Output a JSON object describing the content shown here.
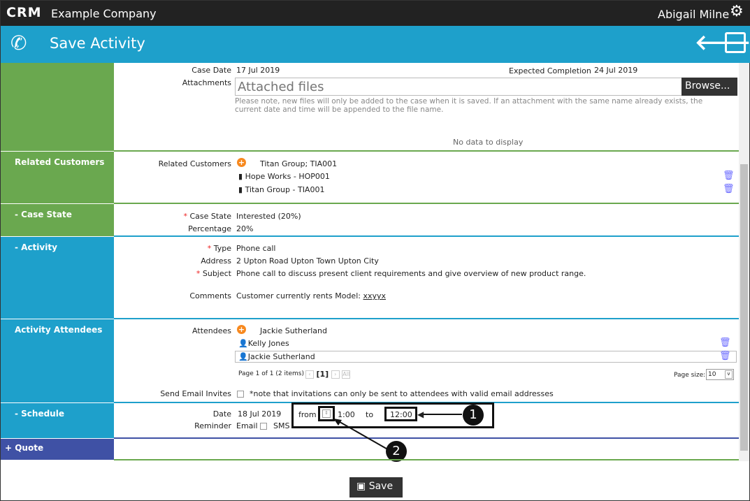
{
  "header": {
    "logo": "CRM",
    "company": "Example Company",
    "user": "Abigail Milne"
  },
  "toolbar": {
    "title": "Save Activity"
  },
  "details": {
    "case_date_label": "Case Date",
    "case_date": "17 Jul 2019",
    "expected_label": "Expected Completion",
    "expected": "24 Jul 2019",
    "attachments_label": "Attachments",
    "attachments_placeholder": "Attached files",
    "browse": "Browse...",
    "note": "Please note, new files will only be added to the case when it is saved. If an attachment with the same name already exists, the current date and time will be appended to the file name.",
    "no_data": "No data to display"
  },
  "related": {
    "section": "Related Customers",
    "label": "Related Customers",
    "selected": "Titan Group; TIA001",
    "items": [
      "Hope Works - HOP001",
      "Titan Group - TIA001"
    ]
  },
  "case_state": {
    "section": "- Case State",
    "state_label": "Case State",
    "state": "Interested (20%)",
    "pct_label": "Percentage",
    "pct": "20%"
  },
  "activity": {
    "section": "- Activity",
    "type_label": "Type",
    "type": "Phone call",
    "address_label": "Address",
    "address": "2 Upton Road Upton Town Upton City",
    "subject_label": "Subject",
    "subject": "Phone call to discuss present client requirements and give overview of new product range.",
    "comments_label": "Comments",
    "comments_pre": "Customer currently rents Model: ",
    "comments_link": "xxyyx"
  },
  "attendees": {
    "section": "Activity Attendees",
    "label": "Attendees",
    "selected": "Jackie Sutherland",
    "items": [
      "Kelly Jones",
      "Jackie Sutherland"
    ],
    "pager": "Page 1 of 1 (2 items)",
    "page": "[1]",
    "page_size_label": "Page size:",
    "page_size": "10",
    "invites_label": "Send Email Invites",
    "invites_note": "*note that invitations can only be sent to attendees with valid email addresses"
  },
  "schedule": {
    "section": "- Schedule",
    "date_label": "Date",
    "date": "18 Jul 2019",
    "from": "from",
    "from_time": "1:00",
    "to": "to",
    "to_time": "12:00",
    "reminder_label": "Reminder",
    "email": "Email",
    "sms": "SMS"
  },
  "quote": {
    "section": "+ Quote"
  },
  "callouts": [
    "1",
    "2"
  ],
  "footer": {
    "save": "Save"
  },
  "colors": {
    "green": "#6aa84f",
    "blue": "#1ea0cb",
    "quote": "#3f51a5",
    "topbar": "#222222"
  }
}
